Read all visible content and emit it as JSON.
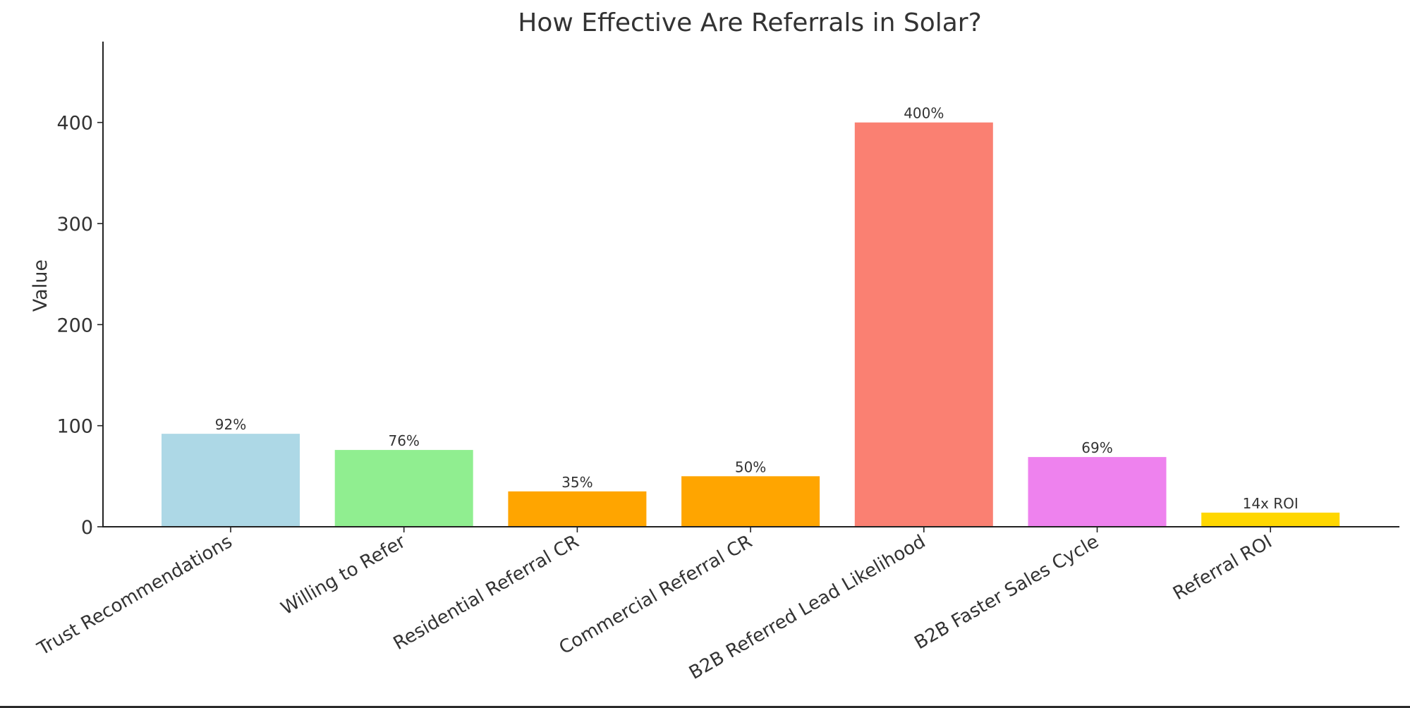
{
  "chart_data": {
    "type": "bar",
    "title": "How Effective Are Referrals in Solar?",
    "xlabel": "",
    "ylabel": "Value",
    "ylim": [
      0,
      480
    ],
    "yticks": [
      0,
      100,
      200,
      300,
      400
    ],
    "grid": false,
    "categories": [
      "Trust Recommendations",
      "Willing to Refer",
      "Residential Referral CR",
      "Commercial Referral CR",
      "B2B Referred Lead Likelihood",
      "B2B Faster Sales Cycle",
      "Referral ROI"
    ],
    "values": [
      92,
      76,
      35,
      50,
      400,
      69,
      14
    ],
    "data_labels": [
      "92%",
      "76%",
      "35%",
      "50%",
      "400%",
      "69%",
      "14x ROI"
    ],
    "colors": [
      "#add8e6",
      "#90ee90",
      "#ffa500",
      "#ffa500",
      "#fa8072",
      "#ee82ee",
      "#ffd700"
    ]
  }
}
